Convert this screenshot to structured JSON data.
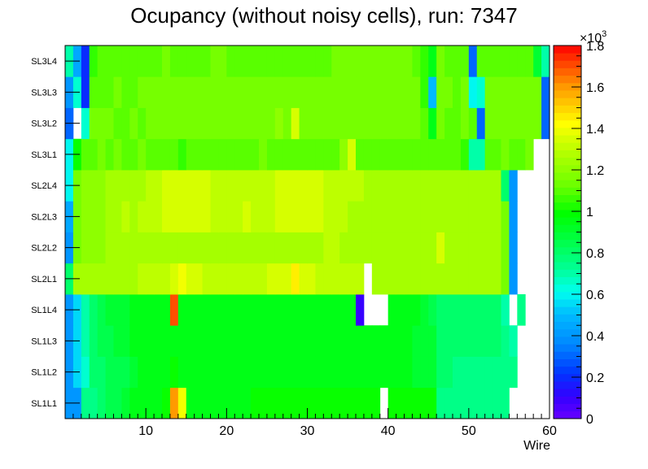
{
  "chart_data": {
    "type": "heatmap",
    "title": "Ocupancy (without noisy cells), run: 7347",
    "xlabel": "Wire",
    "ylabel": "",
    "x_range": [
      0,
      60
    ],
    "x_ticks": [
      "10",
      "20",
      "30",
      "40",
      "50",
      "60"
    ],
    "rows": [
      "SL1L1",
      "SL1L2",
      "SL1L3",
      "SL1L4",
      "SL2L1",
      "SL2L2",
      "SL2L3",
      "SL2L4",
      "SL3L1",
      "SL3L2",
      "SL3L3",
      "SL3L4"
    ],
    "z_range": [
      0,
      1800
    ],
    "colorbar_multiplier_text": "×10",
    "colorbar_multiplier_exp": "3",
    "colorbar_ticks": [
      "0",
      "0.2",
      "0.4",
      "0.6",
      "0.8",
      "1",
      "1.2",
      "1.4",
      "1.6",
      "1.8"
    ],
    "cells": [
      [
        400,
        400,
        750,
        750,
        800,
        850,
        850,
        900,
        950,
        950,
        950,
        950,
        1000,
        1600,
        1400,
        950,
        950,
        950,
        950,
        950,
        950,
        950,
        950,
        1000,
        1000,
        1000,
        1000,
        1000,
        1000,
        1000,
        1000,
        1000,
        1000,
        1000,
        1000,
        1000,
        1000,
        1000,
        1000,
        null,
        1000,
        1000,
        1000,
        1000,
        1000,
        1000,
        750,
        750,
        750,
        750,
        750,
        750,
        750,
        750,
        750,
        null,
        null,
        null,
        null,
        null
      ],
      [
        400,
        550,
        650,
        800,
        800,
        850,
        850,
        850,
        900,
        950,
        950,
        950,
        950,
        1000,
        950,
        950,
        950,
        950,
        950,
        950,
        950,
        950,
        950,
        950,
        950,
        950,
        950,
        950,
        950,
        950,
        950,
        950,
        950,
        950,
        950,
        950,
        950,
        950,
        950,
        950,
        950,
        950,
        950,
        900,
        900,
        900,
        800,
        800,
        750,
        750,
        750,
        750,
        750,
        750,
        750,
        750,
        null,
        null,
        null,
        null
      ],
      [
        400,
        550,
        700,
        800,
        850,
        850,
        900,
        900,
        950,
        950,
        950,
        950,
        950,
        950,
        950,
        950,
        950,
        950,
        950,
        950,
        950,
        950,
        950,
        950,
        950,
        950,
        950,
        950,
        950,
        950,
        950,
        950,
        950,
        950,
        950,
        950,
        950,
        950,
        950,
        950,
        950,
        950,
        950,
        900,
        900,
        900,
        800,
        800,
        800,
        800,
        800,
        800,
        800,
        800,
        750,
        700,
        null,
        null,
        null,
        null
      ],
      [
        400,
        550,
        700,
        800,
        850,
        900,
        900,
        900,
        950,
        950,
        950,
        950,
        950,
        1700,
        950,
        950,
        950,
        950,
        950,
        950,
        950,
        950,
        950,
        950,
        950,
        950,
        950,
        950,
        950,
        950,
        950,
        950,
        950,
        950,
        950,
        950,
        100,
        null,
        null,
        null,
        950,
        950,
        950,
        950,
        900,
        850,
        800,
        800,
        800,
        800,
        800,
        800,
        800,
        800,
        700,
        null,
        750,
        null,
        null,
        null
      ],
      [
        800,
        1250,
        1250,
        1250,
        1250,
        1250,
        1250,
        1250,
        1250,
        1300,
        1300,
        1300,
        1300,
        1350,
        1400,
        1350,
        1350,
        1300,
        1300,
        1300,
        1300,
        1300,
        1300,
        1300,
        1300,
        1350,
        1350,
        1350,
        1450,
        1350,
        1350,
        1300,
        1300,
        1300,
        1300,
        1300,
        1300,
        null,
        1250,
        1250,
        1250,
        1250,
        1250,
        1250,
        1250,
        1250,
        1250,
        1250,
        1250,
        1250,
        1250,
        1250,
        1250,
        1250,
        1150,
        400,
        null,
        null,
        null,
        null
      ],
      [
        400,
        1150,
        1200,
        1200,
        1200,
        1250,
        1250,
        1250,
        1250,
        1250,
        1250,
        1250,
        1250,
        1250,
        1250,
        1250,
        1250,
        1250,
        1250,
        1250,
        1250,
        1250,
        1250,
        1250,
        1250,
        1250,
        1250,
        1250,
        1250,
        1250,
        1250,
        1250,
        1300,
        1300,
        1250,
        1250,
        1250,
        1250,
        1250,
        1250,
        1250,
        1250,
        1250,
        1250,
        1250,
        1250,
        1350,
        1250,
        1250,
        1250,
        1250,
        1250,
        1250,
        1250,
        1150,
        400,
        null,
        null,
        null,
        null
      ],
      [
        450,
        1150,
        1200,
        1200,
        1200,
        1250,
        1250,
        1300,
        1250,
        1300,
        1300,
        1300,
        1350,
        1350,
        1350,
        1350,
        1350,
        1350,
        1300,
        1300,
        1300,
        1300,
        1350,
        1300,
        1300,
        1300,
        1350,
        1350,
        1350,
        1350,
        1350,
        1350,
        1300,
        1300,
        1300,
        1250,
        1250,
        1250,
        1250,
        1250,
        1250,
        1250,
        1250,
        1250,
        1250,
        1250,
        1250,
        1250,
        1250,
        1250,
        1250,
        1250,
        1250,
        1250,
        1150,
        400,
        null,
        null,
        null,
        null
      ],
      [
        600,
        1150,
        1200,
        1200,
        1200,
        1250,
        1250,
        1250,
        1250,
        1250,
        1300,
        1300,
        1350,
        1350,
        1350,
        1350,
        1350,
        1350,
        1300,
        1300,
        1300,
        1300,
        1300,
        1300,
        1300,
        1300,
        1350,
        1350,
        1350,
        1350,
        1350,
        1350,
        1300,
        1300,
        1300,
        1300,
        1300,
        1250,
        1250,
        1250,
        1250,
        1250,
        1250,
        1250,
        1250,
        1250,
        1250,
        1250,
        1250,
        1250,
        1250,
        1250,
        1250,
        1250,
        800,
        400,
        null,
        null,
        null,
        null
      ],
      [
        600,
        1000,
        1100,
        1100,
        1150,
        1100,
        1150,
        1100,
        1100,
        1150,
        1100,
        1100,
        1100,
        1100,
        1050,
        1100,
        1100,
        1100,
        1100,
        1100,
        1100,
        1100,
        1100,
        1100,
        1150,
        1100,
        1100,
        1100,
        1100,
        1100,
        1100,
        1100,
        1100,
        1100,
        1200,
        1350,
        1100,
        1100,
        1100,
        1100,
        1100,
        1100,
        1100,
        1100,
        1100,
        1100,
        1100,
        1100,
        1100,
        1050,
        700,
        700,
        1100,
        1100,
        1150,
        1100,
        1100,
        1150,
        null,
        null
      ],
      [
        300,
        null,
        650,
        1150,
        1150,
        1150,
        1100,
        1100,
        1150,
        1100,
        1150,
        1150,
        1150,
        1150,
        1150,
        1150,
        1150,
        1150,
        1150,
        1150,
        1150,
        1150,
        1150,
        1150,
        1150,
        1150,
        1200,
        1150,
        1350,
        1150,
        1150,
        1150,
        1150,
        1150,
        1150,
        1150,
        1150,
        1150,
        1150,
        1150,
        1150,
        1150,
        1150,
        1150,
        1100,
        950,
        1150,
        1100,
        1100,
        1150,
        1100,
        300,
        1150,
        1150,
        1150,
        1150,
        1150,
        1150,
        1150,
        300
      ],
      [
        400,
        650,
        200,
        1100,
        1100,
        1100,
        1150,
        1100,
        1100,
        1150,
        1150,
        1150,
        1150,
        1150,
        1150,
        1150,
        1150,
        1150,
        1150,
        1150,
        1150,
        1150,
        1150,
        1150,
        1150,
        1150,
        1150,
        1150,
        1150,
        1150,
        1150,
        1150,
        1150,
        1150,
        1150,
        1150,
        1150,
        1150,
        1150,
        1150,
        1150,
        1150,
        1150,
        1150,
        1050,
        500,
        1150,
        1150,
        1100,
        1150,
        600,
        650,
        1150,
        1150,
        1150,
        1150,
        1150,
        1150,
        1150,
        300
      ],
      [
        700,
        450,
        200,
        1050,
        1100,
        1100,
        1100,
        1100,
        1100,
        1100,
        1100,
        1100,
        1150,
        1100,
        1100,
        1100,
        1100,
        1100,
        1150,
        1150,
        1100,
        1100,
        1100,
        1100,
        1100,
        1100,
        1100,
        1100,
        1100,
        1100,
        1100,
        1100,
        1100,
        1150,
        1150,
        1150,
        1150,
        1150,
        1150,
        1150,
        1150,
        1150,
        1150,
        1100,
        1050,
        950,
        1150,
        1100,
        1100,
        1100,
        300,
        1100,
        1100,
        1100,
        1100,
        1100,
        1100,
        1100,
        900,
        700
      ]
    ]
  }
}
